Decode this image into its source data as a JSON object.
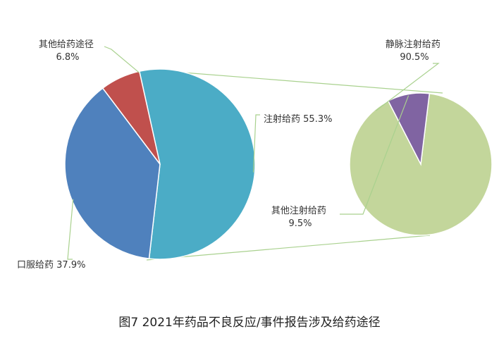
{
  "chart_data": [
    {
      "type": "pie",
      "categories": [
        "注射给药",
        "口服给药",
        "其他给药途径"
      ],
      "values": [
        55.3,
        37.9,
        6.8
      ],
      "labels": [
        {
          "name": "注射给药",
          "percent": "55.3%"
        },
        {
          "name": "口服给药",
          "percent": "37.9%"
        },
        {
          "name": "其他给药途径",
          "percent": "6.8%"
        }
      ],
      "colors": [
        "#4BACC6",
        "#4F81BD",
        "#C0504D"
      ]
    },
    {
      "type": "pie",
      "categories": [
        "静脉注射给药",
        "其他注射给药"
      ],
      "values": [
        90.5,
        9.5
      ],
      "labels": [
        {
          "name": "静脉注射给药",
          "percent": "90.5%"
        },
        {
          "name": "其他注射给药",
          "percent": "9.5%"
        }
      ],
      "colors": [
        "#C3D69B",
        "#8064A2"
      ]
    }
  ],
  "caption": "图7  2021年药品不良反应/事件报告涉及给药途径",
  "leader_color": "#A9D18E"
}
